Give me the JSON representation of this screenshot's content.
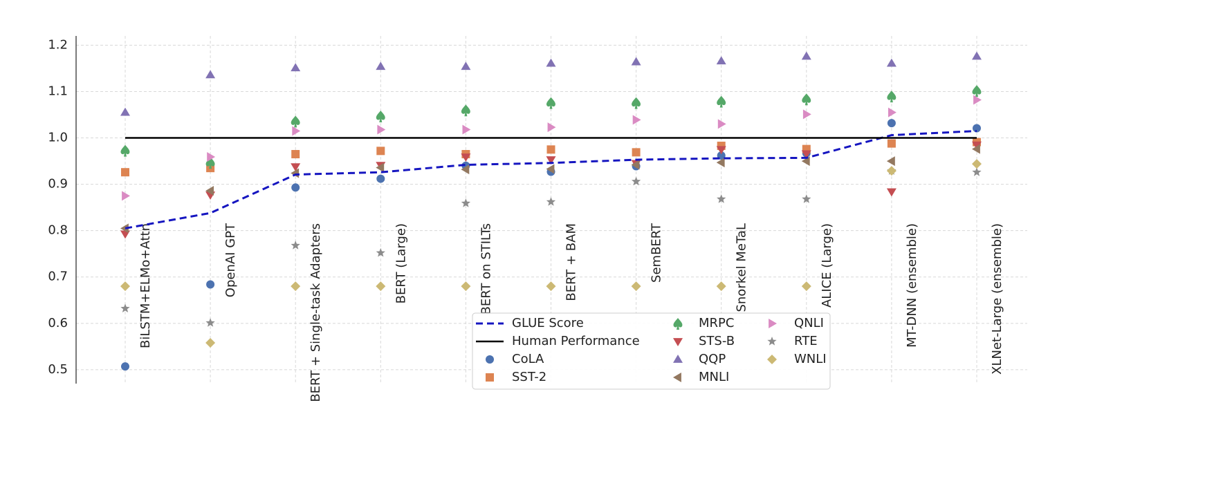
{
  "chart_data": {
    "type": "line",
    "categories": [
      "BiLSTM+ELMo+Attn",
      "OpenAI GPT",
      "BERT + Single-task Adapters",
      "BERT (Large)",
      "BERT on STILTs",
      "BERT + BAM",
      "SemBERT",
      "Snorkel MeTaL",
      "ALICE (Large)",
      "MT-DNN (ensemble)",
      "XLNet-Large (ensemble)"
    ],
    "ylim": [
      0.47,
      1.22
    ],
    "yticks": [
      0.5,
      0.6,
      0.7,
      0.8,
      0.9,
      {
        "value": 1,
        "label": "1.0"
      },
      1.1,
      1.2
    ],
    "grid": true,
    "legend": "lower center",
    "series": [
      {
        "name": "GLUE Score",
        "type": "line",
        "dash": true,
        "color": "#1515c0",
        "values": [
          0.805,
          0.838,
          0.921,
          0.926,
          0.942,
          0.946,
          0.953,
          0.956,
          0.957,
          1.006,
          1.015
        ]
      },
      {
        "name": "Human Performance",
        "type": "line",
        "dash": false,
        "color": "#000000",
        "values": [
          1,
          1,
          1,
          1,
          1,
          1,
          1,
          1,
          1,
          1,
          1
        ]
      },
      {
        "name": "CoLA",
        "type": "scatter",
        "marker": "circle",
        "color": "#4c72b0",
        "values": [
          0.507,
          0.684,
          0.893,
          0.912,
          0.94,
          0.927,
          0.939,
          0.962,
          0.967,
          1.032,
          1.021
        ]
      },
      {
        "name": "SST-2",
        "type": "scatter",
        "marker": "square",
        "color": "#dd8452",
        "values": [
          0.926,
          0.935,
          0.965,
          0.972,
          0.965,
          0.975,
          0.969,
          0.983,
          0.976,
          0.988,
          0.991
        ]
      },
      {
        "name": "MRPC",
        "type": "scatter",
        "marker": "spade",
        "color": "#55a868",
        "values": [
          0.973,
          0.947,
          1.036,
          1.047,
          1.06,
          1.076,
          1.076,
          1.079,
          1.084,
          1.09,
          1.102
        ]
      },
      {
        "name": "STS-B",
        "type": "scatter",
        "marker": "tri-down",
        "color": "#c44e52",
        "values": [
          0.793,
          0.877,
          0.938,
          0.941,
          0.959,
          0.953,
          0.945,
          0.975,
          0.966,
          0.884,
          0.985
        ]
      },
      {
        "name": "QQP",
        "type": "scatter",
        "marker": "tri-up",
        "color": "#8172b3",
        "values": [
          1.055,
          1.136,
          1.151,
          1.154,
          1.154,
          1.161,
          1.164,
          1.166,
          1.176,
          1.161,
          1.176
        ]
      },
      {
        "name": "MNLI",
        "type": "scatter",
        "marker": "tri-left",
        "color": "#937860",
        "values": [
          0.805,
          0.886,
          0.924,
          0.936,
          0.932,
          0.933,
          0.942,
          0.947,
          0.95,
          0.95,
          0.976
        ]
      },
      {
        "name": "QNLI",
        "type": "scatter",
        "marker": "tri-right",
        "color": "#da8bc3",
        "values": [
          0.875,
          0.959,
          1.015,
          1.018,
          1.018,
          1.023,
          1.039,
          1.03,
          1.051,
          1.055,
          1.082
        ]
      },
      {
        "name": "RTE",
        "type": "scatter",
        "marker": "star",
        "color": "#8c8c8c",
        "values": [
          0.632,
          0.601,
          0.768,
          0.752,
          0.859,
          0.862,
          0.906,
          0.868,
          0.868,
          0.929,
          0.926
        ]
      },
      {
        "name": "WNLI",
        "type": "scatter",
        "marker": "diamond",
        "color": "#ccb974",
        "values": [
          0.68,
          0.558,
          0.68,
          0.68,
          0.68,
          0.68,
          0.68,
          0.68,
          0.68,
          0.929,
          0.944
        ]
      }
    ]
  }
}
